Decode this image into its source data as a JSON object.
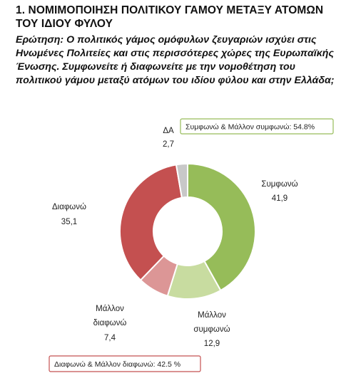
{
  "title": "1. ΝΟΜΙΜΟΠΟΙΗΣΗ ΠΟΛΙΤΙΚΟΥ ΓΑΜΟΥ ΜΕΤΑΞΥ ΑΤΟΜΩΝ ΤΟΥ ΙΔΙΟΥ ΦΥΛΟΥ",
  "question": "Ερώτηση: Ο πολιτικός γάμος ομόφυλων ζευγαριών ισχύει στις Ηνωμένες Πολιτείες και στις περισσότερες χώρες της Ευρωπαϊκής Ένωσης. Συμφωνείτε ή διαφωνείτε με την νομοθέτηση του πολιτικού γάμου μεταξύ ατόμων του ιδίου φύλου και στην Ελλάδα;",
  "chart_data": {
    "type": "pie",
    "donut": true,
    "title": "",
    "slices": [
      {
        "label": "Συμφωνώ",
        "value": 41.9,
        "value_label": "41,9",
        "color": "#96bc59"
      },
      {
        "label": "Μάλλον συμφωνώ",
        "value": 12.9,
        "value_label": "12,9",
        "color": "#c8dca0"
      },
      {
        "label": "Μάλλον διαφωνώ",
        "value": 7.4,
        "value_label": "7,4",
        "color": "#dc9696"
      },
      {
        "label": "Διαφωνώ",
        "value": 35.1,
        "value_label": "35,1",
        "color": "#c45050"
      },
      {
        "label": "ΔΑ",
        "value": 2.7,
        "value_label": "2,7",
        "color": "#c8c8c8"
      }
    ],
    "annotations": [
      {
        "text": "Συμφωνώ & Μάλλον συμφωνώ: 54.8%",
        "border_color": "#96bc59"
      },
      {
        "text": "Διαφωνώ & Μάλλον διαφωνώ: 42.5 %",
        "border_color": "#c45050"
      }
    ]
  }
}
